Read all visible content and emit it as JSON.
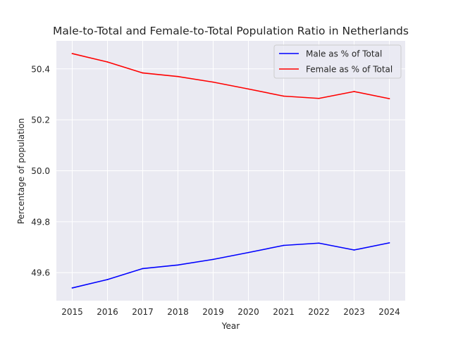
{
  "chart_data": {
    "type": "line",
    "title": "Male-to-Total and Female-to-Total Population Ratio in Netherlands",
    "xlabel": "Year",
    "ylabel": "Percentage of population",
    "x": [
      2015,
      2016,
      2017,
      2018,
      2019,
      2020,
      2021,
      2022,
      2023,
      2024
    ],
    "xlim": [
      2014.55,
      2024.45
    ],
    "ylim": [
      49.49,
      50.51
    ],
    "yticks": [
      49.6,
      49.8,
      50.0,
      50.2,
      50.4
    ],
    "ytick_labels": [
      "49.6",
      "49.8",
      "50.0",
      "50.2",
      "50.4"
    ],
    "xtick_labels": [
      "2015",
      "2016",
      "2017",
      "2018",
      "2019",
      "2020",
      "2021",
      "2022",
      "2023",
      "2024"
    ],
    "grid": true,
    "legend_position": "top-right",
    "background_color": "#eaeaf2",
    "series": [
      {
        "name": "Male as % of Total",
        "color": "#0000ff",
        "values": [
          49.54,
          49.573,
          49.616,
          49.63,
          49.652,
          49.679,
          49.707,
          49.716,
          49.689,
          49.717
        ]
      },
      {
        "name": "Female as % of Total",
        "color": "#ff0000",
        "values": [
          50.46,
          50.427,
          50.384,
          50.37,
          50.348,
          50.321,
          50.293,
          50.284,
          50.311,
          50.283
        ]
      }
    ]
  }
}
